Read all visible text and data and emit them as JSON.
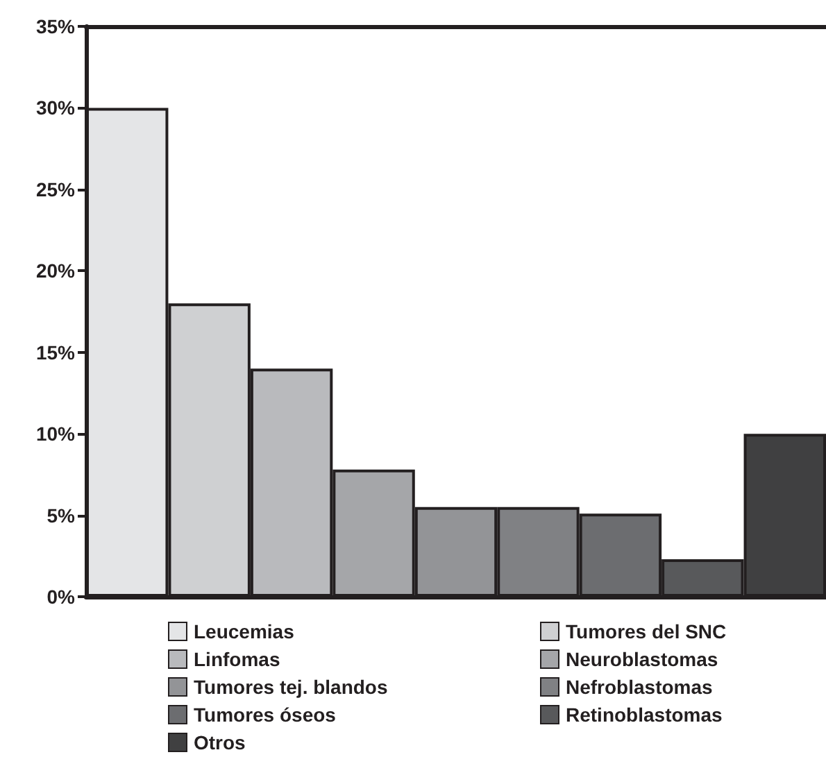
{
  "chart_data": {
    "type": "bar",
    "categories": [
      null,
      null,
      null,
      null,
      null,
      null,
      null,
      null,
      null
    ],
    "series": [
      {
        "name": "Leucemias",
        "color": "#e4e5e7",
        "values": [
          30,
          null,
          null,
          null,
          null,
          null,
          null,
          null,
          null
        ]
      },
      {
        "name": "Tumores del SNC",
        "color": "#cfd0d2",
        "values": [
          null,
          18,
          null,
          null,
          null,
          null,
          null,
          null,
          null
        ]
      },
      {
        "name": "Linfomas",
        "color": "#b9babd",
        "values": [
          null,
          null,
          14,
          null,
          null,
          null,
          null,
          null,
          null
        ]
      },
      {
        "name": "Neuroblastomas",
        "color": "#a5a6a9",
        "values": [
          null,
          null,
          null,
          7.8,
          null,
          null,
          null,
          null,
          null
        ]
      },
      {
        "name": "Tumores tej. blandos",
        "color": "#939497",
        "values": [
          null,
          null,
          null,
          null,
          5.5,
          null,
          null,
          null,
          null
        ]
      },
      {
        "name": "Nefroblastomas",
        "color": "#808184",
        "values": [
          null,
          null,
          null,
          null,
          null,
          5.5,
          null,
          null,
          null
        ]
      },
      {
        "name": "Tumores óseos",
        "color": "#6c6d70",
        "values": [
          null,
          null,
          null,
          null,
          null,
          null,
          5.1,
          null,
          null
        ]
      },
      {
        "name": "Retinoblastomas",
        "color": "#58595b",
        "values": [
          null,
          null,
          null,
          null,
          null,
          null,
          null,
          2.3,
          null
        ]
      },
      {
        "name": "Otros",
        "color": "#404041",
        "values": [
          null,
          null,
          null,
          null,
          null,
          null,
          null,
          null,
          10
        ]
      }
    ],
    "ylim": [
      0,
      35
    ],
    "yticks": [
      {
        "value": 0,
        "label": "0%"
      },
      {
        "value": 5,
        "label": "5%"
      },
      {
        "value": 10,
        "label": "10%"
      },
      {
        "value": 15,
        "label": "15%"
      },
      {
        "value": 20,
        "label": "20%"
      },
      {
        "value": 25,
        "label": "25%"
      },
      {
        "value": 30,
        "label": "30%"
      },
      {
        "value": 35,
        "label": "35%"
      }
    ],
    "grid": false,
    "legend": "bottom"
  }
}
